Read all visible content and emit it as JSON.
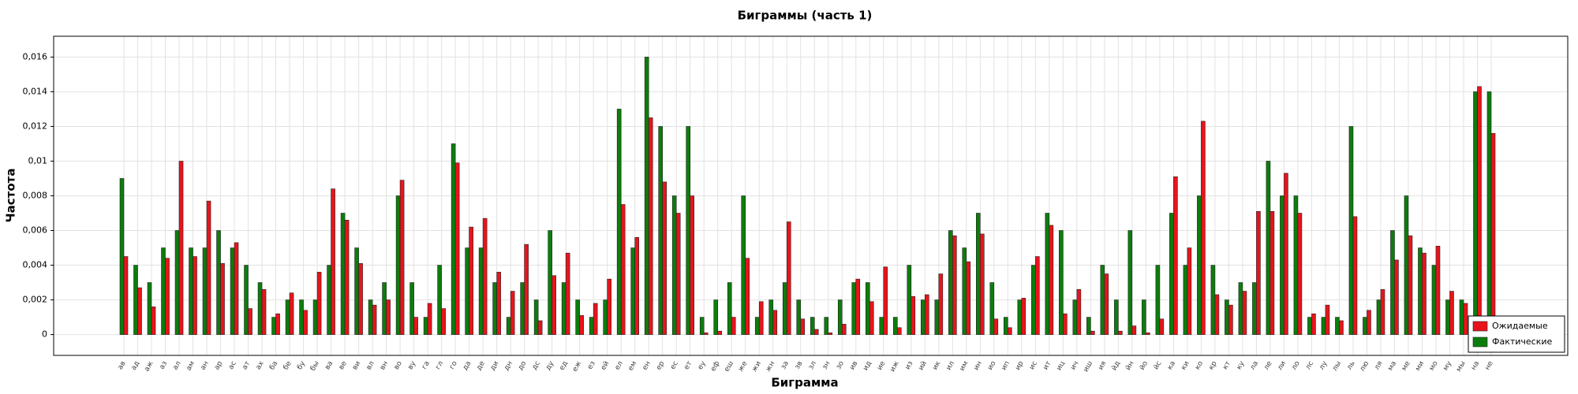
{
  "chart_data": {
    "type": "bar",
    "title": "Биграммы (часть 1)",
    "x_label": "Биграмма",
    "y_label": "Частота",
    "categories": [
      "ав",
      "ад",
      "аж",
      "аз",
      "ал",
      "ам",
      "ан",
      "ар",
      "ас",
      "ат",
      "ах",
      "ба",
      "бе",
      "бу",
      "бы",
      "ва",
      "ве",
      "ви",
      "вл",
      "вн",
      "во",
      "ву",
      "га",
      "гл",
      "го",
      "да",
      "де",
      "ди",
      "дн",
      "до",
      "дс",
      "ду",
      "ед",
      "еж",
      "ез",
      "ей",
      "ел",
      "ем",
      "ен",
      "ер",
      "ес",
      "ет",
      "еу",
      "еф",
      "еш",
      "же",
      "жи",
      "жн",
      "за",
      "зв",
      "зл",
      "зн",
      "зо",
      "ив",
      "ид",
      "ие",
      "иж",
      "из",
      "ий",
      "ик",
      "ил",
      "им",
      "ин",
      "ио",
      "ип",
      "ир",
      "ис",
      "ит",
      "иц",
      "ич",
      "иш",
      "ия",
      "йд",
      "йн",
      "йо",
      "йс",
      "ка",
      "ки",
      "ко",
      "кр",
      "кт",
      "ку",
      "ла",
      "ле",
      "ли",
      "ло",
      "лс",
      "лу",
      "лы",
      "ль",
      "лю",
      "ля",
      "ма",
      "ме",
      "ми",
      "мо",
      "му",
      "мы",
      "на",
      "не"
    ],
    "series": [
      {
        "name": "Ожидаемые",
        "color": "#e8141c",
        "values": [
          0.0045,
          0.0027,
          0.0016,
          0.0044,
          0.01,
          0.0045,
          0.0077,
          0.0041,
          0.0053,
          0.0015,
          0.0026,
          0.0012,
          0.0024,
          0.0014,
          0.0036,
          0.0084,
          0.0066,
          0.0041,
          0.0017,
          0.002,
          0.0089,
          0.001,
          0.0018,
          0.0015,
          0.0099,
          0.0062,
          0.0067,
          0.0036,
          0.0025,
          0.0052,
          0.0008,
          0.0034,
          0.0047,
          0.0011,
          0.0018,
          0.0032,
          0.0075,
          0.0056,
          0.0125,
          0.0088,
          0.007,
          0.008,
          0.0001,
          0.0002,
          0.001,
          0.0044,
          0.0019,
          0.0014,
          0.0065,
          0.0009,
          0.0003,
          0.0001,
          0.0006,
          0.0032,
          0.0019,
          0.0039,
          0.0004,
          0.0022,
          0.0023,
          0.0035,
          0.0057,
          0.0042,
          0.0058,
          0.0009,
          0.0004,
          0.0021,
          0.0045,
          0.0063,
          0.0012,
          0.0026,
          0.0002,
          0.0035,
          0.0002,
          0.0005,
          0.0001,
          0.0009,
          0.0091,
          0.005,
          0.0123,
          0.0023,
          0.0017,
          0.0025,
          0.0071,
          0.0071,
          0.0093,
          0.007,
          0.0012,
          0.0017,
          0.0008,
          0.0068,
          0.0014,
          0.0026,
          0.0043,
          0.0057,
          0.0047,
          0.0051,
          0.0025,
          0.0018,
          0.0143,
          0.0116
        ]
      },
      {
        "name": "Фактические",
        "color": "#0c7d0c",
        "values": [
          0.009,
          0.004,
          0.003,
          0.005,
          0.006,
          0.005,
          0.005,
          0.006,
          0.005,
          0.004,
          0.003,
          0.001,
          0.002,
          0.002,
          0.002,
          0.004,
          0.007,
          0.005,
          0.002,
          0.003,
          0.008,
          0.003,
          0.001,
          0.004,
          0.011,
          0.005,
          0.005,
          0.003,
          0.001,
          0.003,
          0.002,
          0.006,
          0.003,
          0.002,
          0.001,
          0.002,
          0.013,
          0.005,
          0.016,
          0.012,
          0.008,
          0.012,
          0.001,
          0.002,
          0.003,
          0.008,
          0.001,
          0.002,
          0.003,
          0.002,
          0.001,
          0.001,
          0.002,
          0.003,
          0.003,
          0.001,
          0.001,
          0.004,
          0.002,
          0.002,
          0.006,
          0.005,
          0.007,
          0.003,
          0.001,
          0.002,
          0.004,
          0.007,
          0.006,
          0.002,
          0.001,
          0.004,
          0.002,
          0.006,
          0.002,
          0.004,
          0.007,
          0.004,
          0.008,
          0.004,
          0.002,
          0.003,
          0.003,
          0.01,
          0.008,
          0.008,
          0.001,
          0.001,
          0.001,
          0.012,
          0.001,
          0.002,
          0.006,
          0.008,
          0.005,
          0.004,
          0.002,
          0.002,
          0.014,
          0.014
        ]
      }
    ],
    "ylim": [
      -0.0012,
      0.0172
    ],
    "yticks": [
      0,
      {
        "value": 0.002,
        "label": "0,002"
      },
      {
        "value": 0.004,
        "label": "0,004"
      },
      {
        "value": 0.006,
        "label": "0,006"
      },
      {
        "value": 0.008,
        "label": "0,008"
      },
      {
        "value": 0.01,
        "label": "0,01"
      },
      {
        "value": 0.012,
        "label": "0,012"
      },
      {
        "value": 0.014,
        "label": "0,014"
      },
      {
        "value": 0.016,
        "label": "0,016"
      }
    ],
    "grid": true,
    "legend": "lower right"
  }
}
